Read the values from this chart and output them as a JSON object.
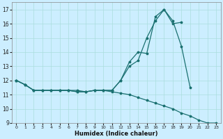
{
  "xlabel": "Humidex (Indice chaleur)",
  "bg_color": "#cceeff",
  "grid_color": "#aadddd",
  "line_color": "#1a7070",
  "xlim": [
    -0.5,
    23.5
  ],
  "ylim": [
    9,
    17.5
  ],
  "yticks": [
    9,
    10,
    11,
    12,
    13,
    14,
    15,
    16,
    17
  ],
  "xticks": [
    0,
    1,
    2,
    3,
    4,
    5,
    6,
    7,
    8,
    9,
    10,
    11,
    12,
    13,
    14,
    15,
    16,
    17,
    18,
    19,
    20,
    21,
    22,
    23
  ],
  "series1_x": [
    0,
    1,
    2,
    3,
    4,
    5,
    6,
    7,
    8,
    9,
    10,
    11,
    12,
    13,
    14,
    15,
    16,
    17,
    18,
    19
  ],
  "series1_y": [
    12.0,
    11.7,
    11.3,
    11.3,
    11.3,
    11.3,
    11.3,
    11.3,
    11.2,
    11.3,
    11.3,
    11.3,
    12.0,
    13.0,
    13.4,
    15.0,
    16.2,
    17.0,
    16.0,
    16.1
  ],
  "series2_x": [
    0,
    1,
    2,
    3,
    4,
    5,
    6,
    7,
    8,
    9,
    10,
    11,
    12,
    13,
    14,
    15,
    16,
    17,
    18,
    19,
    20
  ],
  "series2_y": [
    12.0,
    11.7,
    11.3,
    11.3,
    11.3,
    11.3,
    11.3,
    11.2,
    11.2,
    11.3,
    11.3,
    11.3,
    12.0,
    13.3,
    14.0,
    13.9,
    16.5,
    17.0,
    16.2,
    14.4,
    11.5
  ],
  "series3_x": [
    0,
    1,
    2,
    3,
    4,
    5,
    6,
    7,
    8,
    9,
    10,
    11,
    12,
    13,
    14,
    15,
    16,
    17,
    18,
    19,
    20,
    21,
    22,
    23
  ],
  "series3_y": [
    12.0,
    11.7,
    11.3,
    11.3,
    11.3,
    11.3,
    11.3,
    11.2,
    11.2,
    11.3,
    11.3,
    11.2,
    11.1,
    11.0,
    10.8,
    10.6,
    10.4,
    10.2,
    10.0,
    9.7,
    9.5,
    9.2,
    9.0,
    9.0
  ]
}
